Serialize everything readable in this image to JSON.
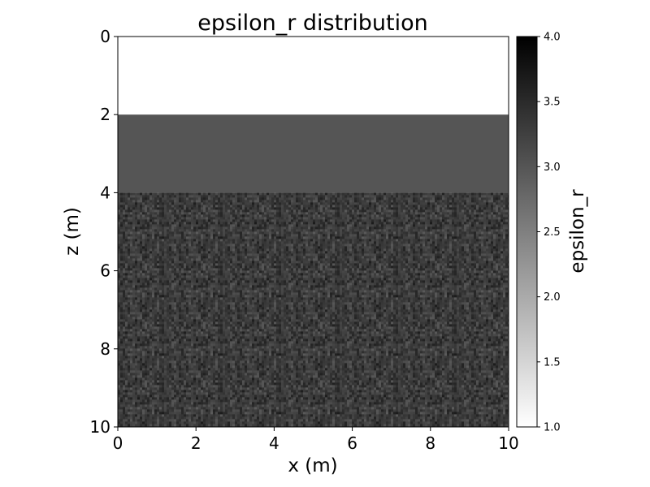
{
  "chart_data": {
    "type": "heatmap",
    "title": "epsilon_r distribution",
    "xlabel": "x (m)",
    "ylabel": "z (m)",
    "xlim": [
      0,
      10
    ],
    "ylim": [
      10,
      0
    ],
    "y_axis_inverted": true,
    "x_ticks": [
      "0",
      "2",
      "4",
      "6",
      "8",
      "10"
    ],
    "y_ticks": [
      "0",
      "2",
      "4",
      "6",
      "8",
      "10"
    ],
    "grid": false,
    "colormap": "gray_r",
    "colormap_colors": {
      "min": "#ffffff",
      "max": "#000000"
    },
    "layers": [
      {
        "z_top": 0,
        "z_bottom": 2,
        "epsilon_r": 1.0,
        "textured": false
      },
      {
        "z_top": 2,
        "z_bottom": 4,
        "epsilon_r": 3.0,
        "textured": false
      },
      {
        "z_top": 4,
        "z_bottom": 10,
        "epsilon_r": 3.3,
        "textured": true,
        "random_range": [
          2.9,
          3.7
        ]
      }
    ],
    "colorbar": {
      "label": "epsilon_r",
      "range": [
        1.0,
        4.0
      ],
      "ticks": [
        "1.0",
        "1.5",
        "2.0",
        "2.5",
        "3.0",
        "3.5",
        "4.0"
      ]
    }
  }
}
